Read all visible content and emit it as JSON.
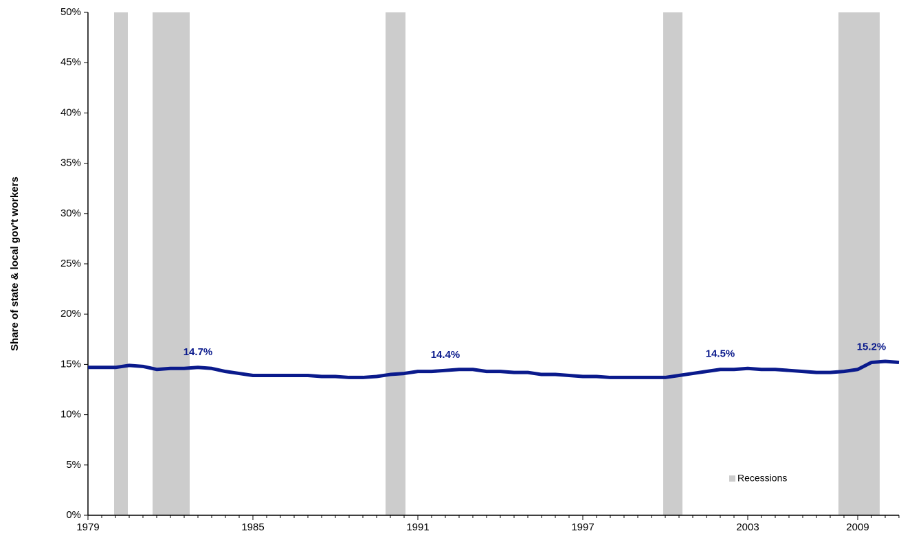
{
  "chart_data": {
    "type": "line",
    "y_label": "Share of state & local gov't workers",
    "categories": [
      "1979",
      null,
      null,
      null,
      null,
      null,
      null,
      null,
      null,
      null,
      null,
      null,
      "1985",
      null,
      null,
      null,
      null,
      null,
      null,
      null,
      null,
      null,
      null,
      null,
      "1991",
      null,
      null,
      null,
      null,
      null,
      null,
      null,
      null,
      null,
      null,
      null,
      "1997",
      null,
      null,
      null,
      null,
      null,
      null,
      null,
      null,
      null,
      null,
      null,
      "2003",
      null,
      null,
      null,
      null,
      null,
      null,
      null,
      "2009",
      null,
      null,
      null
    ],
    "series": [
      {
        "color": "#0a1a8c",
        "values": [
          14.7,
          14.7,
          14.7,
          14.9,
          14.8,
          14.5,
          14.6,
          14.6,
          14.7,
          14.6,
          14.3,
          14.1,
          13.9,
          13.9,
          13.9,
          13.9,
          13.9,
          13.8,
          13.8,
          13.7,
          13.7,
          13.8,
          14.0,
          14.1,
          14.3,
          14.3,
          14.4,
          14.5,
          14.5,
          14.3,
          14.3,
          14.2,
          14.2,
          14.0,
          14.0,
          13.9,
          13.8,
          13.8,
          13.7,
          13.7,
          13.7,
          13.7,
          13.7,
          13.9,
          14.1,
          14.3,
          14.5,
          14.5,
          14.6,
          14.5,
          14.5,
          14.4,
          14.3,
          14.2,
          14.2,
          14.3,
          14.5,
          15.2,
          15.3,
          15.2
        ],
        "value_labels": [
          null,
          null,
          null,
          null,
          null,
          null,
          null,
          null,
          "14.7%",
          null,
          null,
          null,
          null,
          null,
          null,
          null,
          null,
          null,
          null,
          null,
          null,
          null,
          null,
          null,
          null,
          null,
          "14.4%",
          null,
          null,
          null,
          null,
          null,
          null,
          null,
          null,
          null,
          null,
          null,
          null,
          null,
          null,
          null,
          null,
          null,
          null,
          null,
          "14.5%",
          null,
          null,
          null,
          null,
          null,
          null,
          null,
          null,
          null,
          null,
          "15.2%",
          null,
          null
        ]
      }
    ],
    "recessions": {
      "name": "Recessions",
      "color": "#cccccc",
      "spans": [
        [
          1.9,
          2.9
        ],
        [
          4.7,
          7.4
        ],
        [
          21.65,
          23.1
        ],
        [
          41.85,
          43.25
        ],
        [
          54.6,
          57.6
        ]
      ]
    },
    "ylim": [
      0,
      50
    ],
    "yticks": [
      {
        "value": 0,
        "label": "0%"
      },
      {
        "value": 5,
        "label": "5%"
      },
      {
        "value": 10,
        "label": "10%"
      },
      {
        "value": 15,
        "label": "15%"
      },
      {
        "value": 20,
        "label": "20%"
      },
      {
        "value": 25,
        "label": "25%"
      },
      {
        "value": 30,
        "label": "30%"
      },
      {
        "value": 35,
        "label": "35%"
      },
      {
        "value": 40,
        "label": "40%"
      },
      {
        "value": 45,
        "label": "45%"
      },
      {
        "value": 50,
        "label": "50%"
      }
    ],
    "grid": false
  }
}
